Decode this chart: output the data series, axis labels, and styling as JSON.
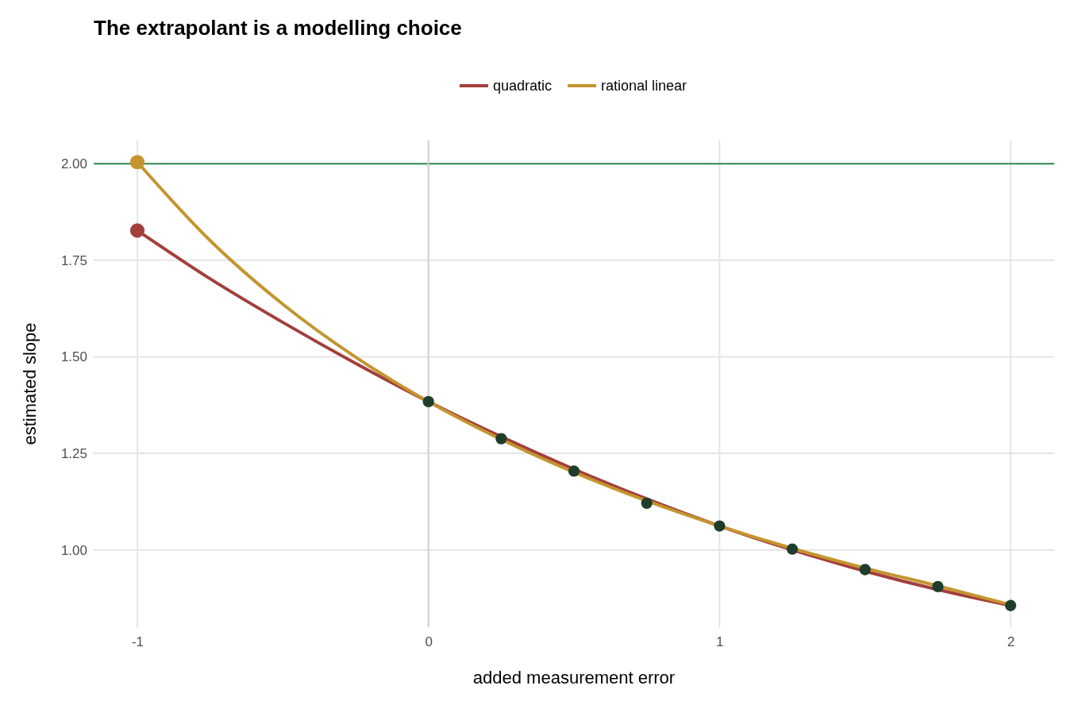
{
  "chart_data": {
    "type": "line",
    "title": "The extrapolant is a modelling choice",
    "xlabel": "added measurement error",
    "ylabel": "estimated slope",
    "xlim": [
      -1.15,
      2.15
    ],
    "ylim": [
      0.8,
      2.06
    ],
    "xticks": [
      -1,
      0,
      1,
      2
    ],
    "yticks": [
      {
        "value": 1,
        "label": "1.00"
      },
      {
        "value": 1.25,
        "label": "1.25"
      },
      {
        "value": 1.5,
        "label": "1.50"
      },
      {
        "value": 1.75,
        "label": "1.75"
      },
      {
        "value": 2,
        "label": "2.00"
      }
    ],
    "grid": true,
    "legend": "top",
    "line_style": "solid",
    "ref_lines": [
      {
        "axis": "y",
        "value": 2,
        "color": "#2e8b57"
      },
      {
        "axis": "x",
        "value": 0,
        "color": "#d4d4cc"
      }
    ],
    "series": [
      {
        "name": "quadratic",
        "color": "#a33f3c",
        "marker": "none",
        "x": [
          -1,
          -0.75,
          -0.5,
          -0.25,
          0,
          0.25,
          0.5,
          0.75,
          1,
          1.25,
          1.5,
          1.75,
          2
        ],
        "values": [
          1.827,
          1.702,
          1.589,
          1.483,
          1.384,
          1.293,
          1.209,
          1.132,
          1.062,
          1.0,
          0.945,
          0.897,
          0.856
        ]
      },
      {
        "name": "rational linear",
        "color": "#c4952f",
        "marker": "none",
        "x": [
          -1,
          -0.75,
          -0.5,
          -0.25,
          0,
          0.25,
          0.5,
          0.75,
          1,
          1.25,
          1.5,
          1.75,
          2
        ],
        "values": [
          2.004,
          1.801,
          1.636,
          1.499,
          1.384,
          1.286,
          1.201,
          1.127,
          1.062,
          1.004,
          0.953,
          0.907,
          0.858
        ]
      },
      {
        "type": "scatter",
        "color": "#a33f3c",
        "marker": "circle",
        "x": [
          -1
        ],
        "values": [
          1.827
        ]
      },
      {
        "type": "scatter",
        "color": "#c4952f",
        "marker": "circle",
        "x": [
          -1
        ],
        "values": [
          2.004
        ]
      },
      {
        "type": "scatter",
        "color": "#1f3d2b",
        "marker": "circle",
        "x": [
          0,
          0.25,
          0.5,
          0.75,
          1,
          1.25,
          1.5,
          1.75,
          2
        ],
        "values": [
          1.384,
          1.288,
          1.204,
          1.121,
          1.062,
          1.002,
          0.949,
          0.905,
          0.856
        ]
      }
    ]
  }
}
